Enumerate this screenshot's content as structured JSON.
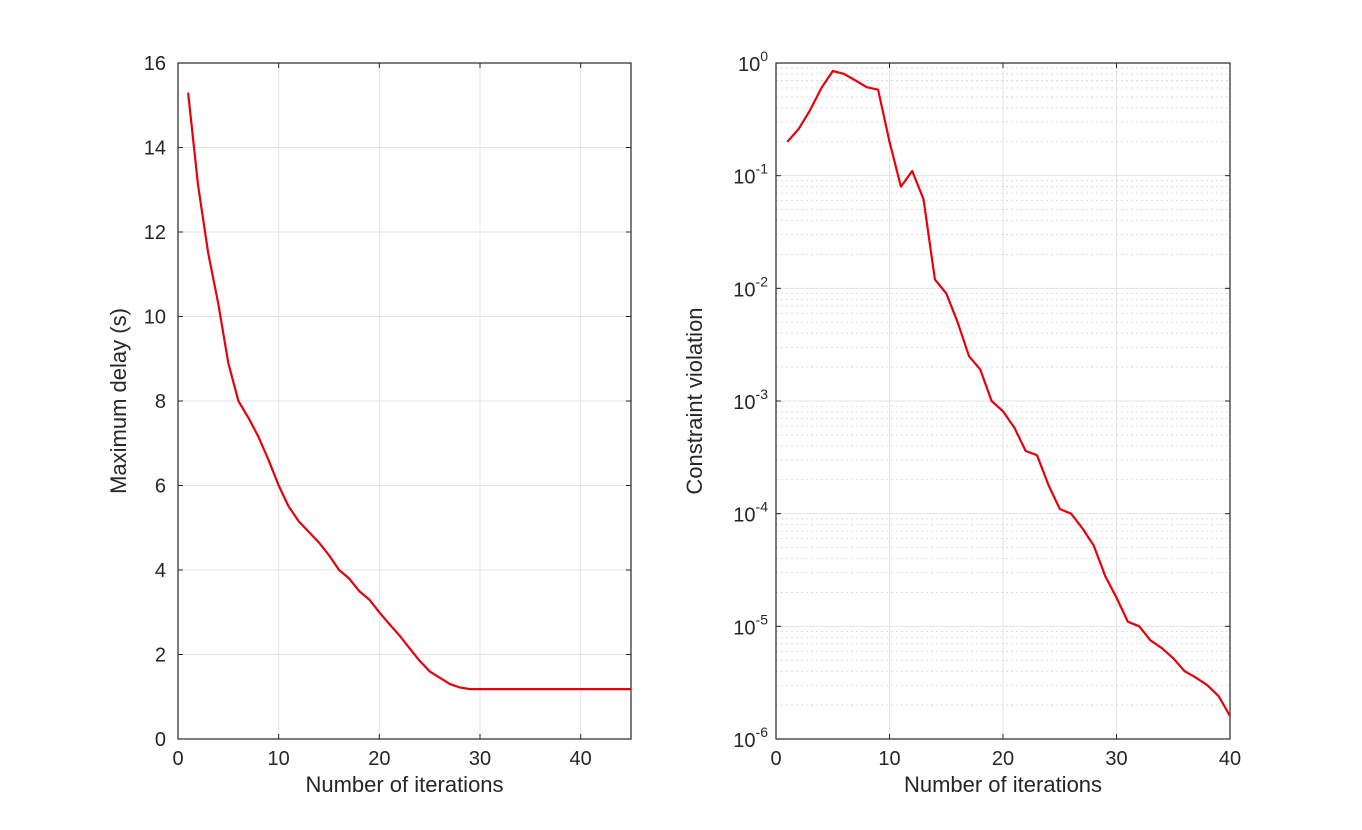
{
  "colors": {
    "series": "#e8000b",
    "axis": "#262626"
  },
  "chart_data": [
    {
      "type": "line",
      "title": "",
      "xlabel": "Number of iterations",
      "ylabel": "Maximum delay (s)",
      "xlim": [
        0,
        45
      ],
      "ylim": [
        0,
        16
      ],
      "yscale": "linear",
      "grid": true,
      "xticks": [
        0,
        10,
        20,
        30,
        40
      ],
      "yticks": [
        0,
        2,
        4,
        6,
        8,
        10,
        12,
        14,
        16
      ],
      "series": [
        {
          "x": [
            1,
            2,
            3,
            4,
            5,
            6,
            7,
            8,
            9,
            10,
            11,
            12,
            13,
            14,
            15,
            16,
            17,
            18,
            19,
            20,
            21,
            22,
            23,
            24,
            25,
            26,
            27,
            28,
            29,
            30,
            31,
            32,
            33,
            34,
            35,
            36,
            37,
            38,
            39,
            40,
            41,
            42,
            43,
            44,
            45
          ],
          "values": [
            15.3,
            13.1,
            11.5,
            10.3,
            8.9,
            8.0,
            7.6,
            7.15,
            6.6,
            6.0,
            5.5,
            5.15,
            4.9,
            4.65,
            4.35,
            4.0,
            3.8,
            3.5,
            3.3,
            3.0,
            2.72,
            2.45,
            2.15,
            1.85,
            1.6,
            1.45,
            1.3,
            1.22,
            1.18,
            1.18,
            1.18,
            1.18,
            1.18,
            1.18,
            1.18,
            1.18,
            1.18,
            1.18,
            1.18,
            1.18,
            1.18,
            1.18,
            1.18,
            1.18,
            1.18
          ]
        }
      ]
    },
    {
      "type": "line",
      "title": "",
      "xlabel": "Number of iterations",
      "ylabel": "Constraint violation",
      "xlim": [
        0,
        40
      ],
      "ylim": [
        1e-06,
        1
      ],
      "yscale": "log",
      "grid": true,
      "xticks": [
        0,
        10,
        20,
        30,
        40
      ],
      "yticks_exponents": [
        -6,
        -5,
        -4,
        -3,
        -2,
        -1,
        0
      ],
      "ytick_base": "10",
      "series": [
        {
          "x": [
            1,
            2,
            3,
            4,
            5,
            6,
            7,
            8,
            9,
            10,
            11,
            12,
            13,
            14,
            15,
            16,
            17,
            18,
            19,
            20,
            21,
            22,
            23,
            24,
            25,
            26,
            27,
            28,
            29,
            30,
            31,
            32,
            33,
            34,
            35,
            36,
            37,
            38,
            39,
            40
          ],
          "values": [
            0.2,
            0.26,
            0.38,
            0.6,
            0.85,
            0.8,
            0.7,
            0.61,
            0.58,
            0.2,
            0.08,
            0.11,
            0.062,
            0.012,
            0.009,
            0.005,
            0.0025,
            0.0019,
            0.001,
            0.00081,
            0.00058,
            0.00036,
            0.00033,
            0.00018,
            0.00011,
            0.0001,
            7.4e-05,
            5.2e-05,
            2.8e-05,
            1.8e-05,
            1.1e-05,
            1e-05,
            7.5e-06,
            6.4e-06,
            5.2e-06,
            4e-06,
            3.5e-06,
            3e-06,
            2.4e-06,
            1.6e-06
          ]
        }
      ]
    }
  ]
}
